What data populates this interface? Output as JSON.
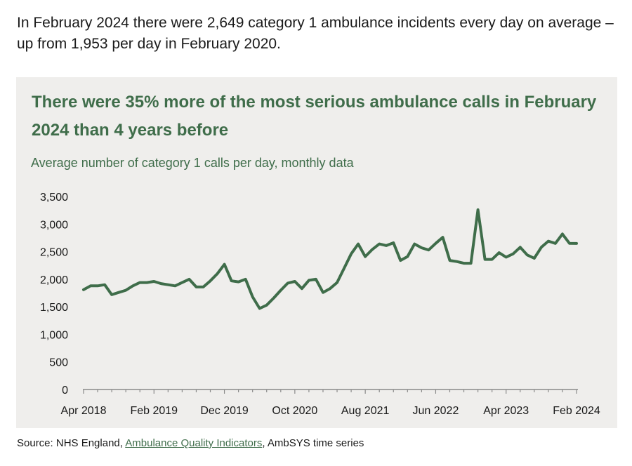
{
  "intro_text": "In February 2024 there were 2,649 category 1 ambulance incidents every day on average – up from 1,953 per day in February 2020.",
  "source": {
    "prefix": "Source: NHS England, ",
    "link_text": "Ambulance Quality Indicators",
    "suffix": ", AmbSYS time series"
  },
  "colors": {
    "line": "#3f6d4a",
    "panel_bg": "#efeeec",
    "axis": "#8a8a8a"
  },
  "chart_data": {
    "type": "line",
    "title": "There were 35% more of the most serious ambulance calls in February 2024 than 4 years before",
    "subtitle": "Average number of category 1 calls per day, monthly data",
    "xlabel": "",
    "ylabel": "",
    "ylim": [
      0,
      3500
    ],
    "yticks": [
      0,
      500,
      1000,
      1500,
      2000,
      2500,
      3000,
      3500
    ],
    "ytick_labels": [
      "0",
      "500",
      "1,000",
      "1,500",
      "2,000",
      "2,500",
      "3,000",
      "3,500"
    ],
    "x_tick_labels": [
      "Apr 2018",
      "Feb 2019",
      "Dec 2019",
      "Oct 2020",
      "Aug 2021",
      "Jun 2022",
      "Apr 2023",
      "Feb 2024"
    ],
    "x_tick_indices": [
      0,
      10,
      20,
      30,
      40,
      50,
      60,
      70
    ],
    "grid": false,
    "series": [
      {
        "name": "Category 1 calls per day",
        "x": [
          "Apr 2018",
          "May 2018",
          "Jun 2018",
          "Jul 2018",
          "Aug 2018",
          "Sep 2018",
          "Oct 2018",
          "Nov 2018",
          "Dec 2018",
          "Jan 2019",
          "Feb 2019",
          "Mar 2019",
          "Apr 2019",
          "May 2019",
          "Jun 2019",
          "Jul 2019",
          "Aug 2019",
          "Sep 2019",
          "Oct 2019",
          "Nov 2019",
          "Dec 2019",
          "Jan 2020",
          "Feb 2020",
          "Mar 2020",
          "Apr 2020",
          "May 2020",
          "Jun 2020",
          "Jul 2020",
          "Aug 2020",
          "Sep 2020",
          "Oct 2020",
          "Nov 2020",
          "Dec 2020",
          "Jan 2021",
          "Feb 2021",
          "Mar 2021",
          "Apr 2021",
          "May 2021",
          "Jun 2021",
          "Jul 2021",
          "Aug 2021",
          "Sep 2021",
          "Oct 2021",
          "Nov 2021",
          "Dec 2021",
          "Jan 2022",
          "Feb 2022",
          "Mar 2022",
          "Apr 2022",
          "May 2022",
          "Jun 2022",
          "Jul 2022",
          "Aug 2022",
          "Sep 2022",
          "Oct 2022",
          "Nov 2022",
          "Dec 2022",
          "Jan 2023",
          "Feb 2023",
          "Mar 2023",
          "Apr 2023",
          "May 2023",
          "Jun 2023",
          "Jul 2023",
          "Aug 2023",
          "Sep 2023",
          "Oct 2023",
          "Nov 2023",
          "Dec 2023",
          "Jan 2024",
          "Feb 2024"
        ],
        "values": [
          1810,
          1880,
          1880,
          1900,
          1720,
          1760,
          1800,
          1880,
          1940,
          1940,
          1960,
          1920,
          1900,
          1880,
          1940,
          2000,
          1860,
          1860,
          1970,
          2100,
          2270,
          1970,
          1953,
          2000,
          1680,
          1470,
          1530,
          1660,
          1800,
          1930,
          1960,
          1830,
          1980,
          2000,
          1760,
          1830,
          1940,
          2200,
          2460,
          2640,
          2410,
          2540,
          2640,
          2610,
          2660,
          2340,
          2410,
          2640,
          2570,
          2530,
          2650,
          2760,
          2340,
          2320,
          2290,
          2290,
          3260,
          2360,
          2360,
          2480,
          2400,
          2460,
          2580,
          2440,
          2380,
          2580,
          2690,
          2650,
          2820,
          2650,
          2649
        ]
      }
    ]
  }
}
